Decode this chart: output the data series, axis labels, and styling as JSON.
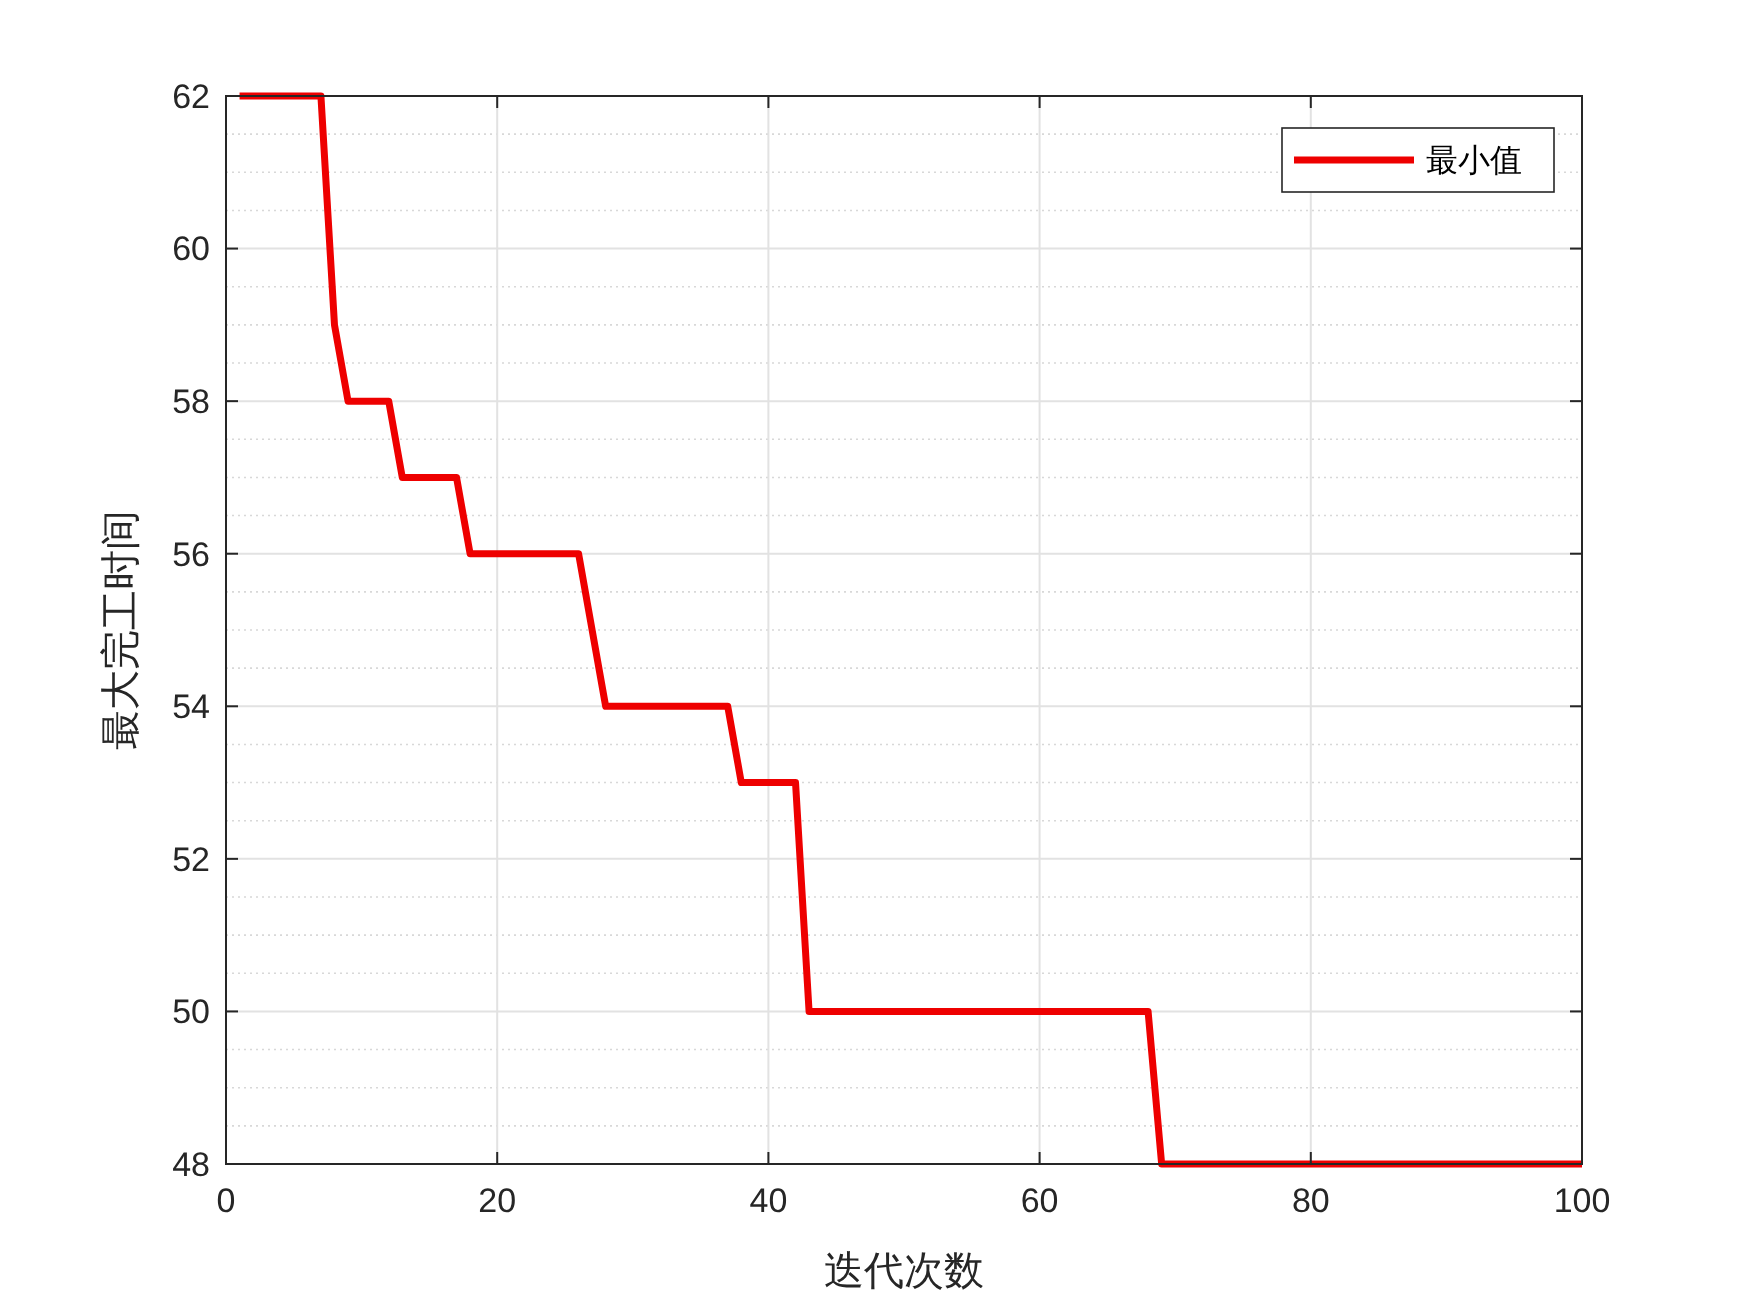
{
  "chart_data": {
    "type": "line",
    "xlabel": "迭代次数",
    "ylabel": "最大完工时间",
    "x": [
      1,
      7,
      8,
      9,
      12,
      13,
      17,
      18,
      26,
      27,
      28,
      37,
      38,
      42,
      43,
      68,
      69,
      100
    ],
    "series": [
      {
        "name": "最小值",
        "color": "#ee0000",
        "values": [
          62,
          62,
          59,
          58,
          58,
          57,
          57,
          56,
          56,
          55,
          54,
          54,
          53,
          53,
          50,
          50,
          48,
          48
        ]
      }
    ],
    "xlim": [
      0,
      100
    ],
    "xticks": [
      0,
      20,
      40,
      60,
      80,
      100
    ],
    "ylim": [
      48,
      62
    ],
    "yticks": [
      48,
      50,
      52,
      54,
      56,
      58,
      60,
      62
    ],
    "grid": true,
    "legend": "top right",
    "marker": "none",
    "line_style": "solid"
  }
}
